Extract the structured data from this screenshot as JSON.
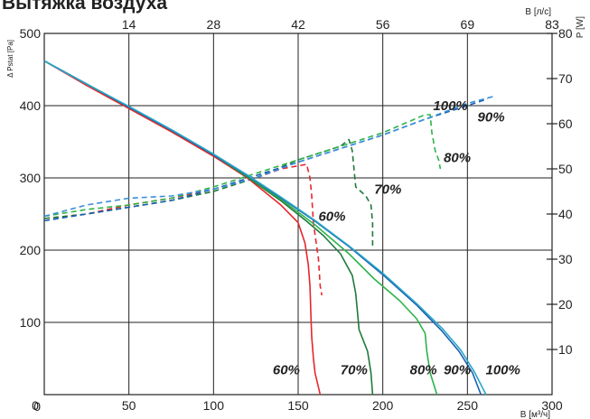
{
  "chart_data": {
    "type": "line",
    "title": "Вытяжка воздуха",
    "xlabel": "В [м³/ч]",
    "x2label": "В [л/с]",
    "ylabel": "Δ Pstat [Pa]",
    "y2label": "P [W]",
    "xlim": [
      0,
      300
    ],
    "ylim": [
      0,
      500
    ],
    "y2lim": [
      0,
      80
    ],
    "x_ticks": [
      0,
      50,
      100,
      150,
      200,
      250,
      300
    ],
    "x_tick_labels": [
      "0",
      "50",
      "100",
      "150",
      "200",
      "250",
      "300"
    ],
    "x2_tick_positions": [
      50,
      100,
      150,
      200,
      250,
      300
    ],
    "x2_tick_labels": [
      "14",
      "28",
      "42",
      "56",
      "69",
      "83"
    ],
    "y_ticks": [
      0,
      100,
      200,
      300,
      400,
      500
    ],
    "y_tick_labels": [
      "0",
      "100",
      "200",
      "300",
      "400",
      "500"
    ],
    "y2_ticks": [
      10,
      20,
      30,
      40,
      50,
      60,
      70,
      80
    ],
    "y2_tick_labels": [
      "10",
      "20",
      "30",
      "40",
      "50",
      "60",
      "70",
      "80"
    ],
    "grid": true,
    "pressure_series": [
      {
        "name": "60%",
        "color": "#e8262b",
        "points": [
          [
            0,
            462
          ],
          [
            25,
            428
          ],
          [
            50,
            396
          ],
          [
            75,
            364
          ],
          [
            100,
            330
          ],
          [
            120,
            300
          ],
          [
            140,
            262
          ],
          [
            150,
            238
          ],
          [
            154,
            210
          ],
          [
            156,
            180
          ],
          [
            157,
            150
          ],
          [
            157.5,
            110
          ],
          [
            158,
            80
          ],
          [
            159,
            50
          ],
          [
            160,
            30
          ],
          [
            163,
            0
          ]
        ]
      },
      {
        "name": "70%",
        "color": "#1f7a3a",
        "points": [
          [
            0,
            462
          ],
          [
            25,
            430
          ],
          [
            50,
            398
          ],
          [
            75,
            366
          ],
          [
            100,
            332
          ],
          [
            120,
            301
          ],
          [
            140,
            268
          ],
          [
            155,
            240
          ],
          [
            165,
            220
          ],
          [
            175,
            195
          ],
          [
            182,
            165
          ],
          [
            184,
            140
          ],
          [
            185,
            115
          ],
          [
            186,
            90
          ],
          [
            191,
            60
          ],
          [
            193,
            30
          ],
          [
            194,
            0
          ]
        ]
      },
      {
        "name": "80%",
        "color": "#2db34a",
        "points": [
          [
            0,
            462
          ],
          [
            25,
            430
          ],
          [
            50,
            398
          ],
          [
            75,
            366
          ],
          [
            100,
            332
          ],
          [
            120,
            302
          ],
          [
            140,
            270
          ],
          [
            160,
            235
          ],
          [
            180,
            195
          ],
          [
            195,
            160
          ],
          [
            210,
            130
          ],
          [
            220,
            105
          ],
          [
            225,
            85
          ],
          [
            226,
            60
          ],
          [
            228,
            30
          ],
          [
            232,
            0
          ]
        ]
      },
      {
        "name": "90%",
        "color": "#1a5fb0",
        "points": [
          [
            0,
            462
          ],
          [
            25,
            430
          ],
          [
            50,
            398
          ],
          [
            75,
            366
          ],
          [
            100,
            332
          ],
          [
            120,
            303
          ],
          [
            140,
            272
          ],
          [
            160,
            240
          ],
          [
            180,
            205
          ],
          [
            200,
            166
          ],
          [
            220,
            124
          ],
          [
            235,
            88
          ],
          [
            245,
            60
          ],
          [
            253,
            30
          ],
          [
            258,
            0
          ]
        ]
      },
      {
        "name": "100%",
        "color": "#2aa6c8",
        "points": [
          [
            0,
            462
          ],
          [
            25,
            430
          ],
          [
            50,
            399
          ],
          [
            75,
            367
          ],
          [
            100,
            333
          ],
          [
            120,
            304
          ],
          [
            140,
            273
          ],
          [
            160,
            241
          ],
          [
            180,
            206
          ],
          [
            200,
            168
          ],
          [
            220,
            126
          ],
          [
            235,
            92
          ],
          [
            246,
            62
          ],
          [
            254,
            32
          ],
          [
            261,
            0
          ]
        ]
      }
    ],
    "power_series": [
      {
        "name": "60%",
        "color": "#e8262b",
        "points": [
          [
            0,
            39
          ],
          [
            25,
            40
          ],
          [
            50,
            42
          ],
          [
            75,
            43.5
          ],
          [
            100,
            45.5
          ],
          [
            125,
            48
          ],
          [
            140,
            50
          ],
          [
            155,
            51
          ],
          [
            157,
            48
          ],
          [
            158,
            44
          ],
          [
            159,
            38
          ],
          [
            162,
            30
          ],
          [
            163,
            24
          ],
          [
            164,
            22
          ]
        ]
      },
      {
        "name": "70%",
        "color": "#1f7a3a",
        "points": [
          [
            0,
            39
          ],
          [
            25,
            40
          ],
          [
            50,
            41.5
          ],
          [
            75,
            43
          ],
          [
            100,
            45
          ],
          [
            125,
            48
          ],
          [
            150,
            52
          ],
          [
            175,
            55
          ],
          [
            180,
            56.5
          ],
          [
            182,
            54
          ],
          [
            183,
            50
          ],
          [
            184,
            46
          ],
          [
            190,
            44
          ],
          [
            193,
            42
          ],
          [
            194,
            38
          ],
          [
            194,
            33
          ]
        ]
      },
      {
        "name": "80%",
        "color": "#2db34a",
        "points": [
          [
            0,
            39.5
          ],
          [
            25,
            41
          ],
          [
            50,
            42
          ],
          [
            75,
            43.5
          ],
          [
            100,
            46
          ],
          [
            125,
            49
          ],
          [
            150,
            52
          ],
          [
            175,
            55
          ],
          [
            200,
            58
          ],
          [
            225,
            62
          ],
          [
            228,
            62
          ],
          [
            229,
            58
          ],
          [
            231,
            54
          ],
          [
            233,
            52
          ],
          [
            234,
            50
          ]
        ]
      },
      {
        "name": "90%",
        "color": "#1a5fb0",
        "points": [
          [
            0,
            38.5
          ],
          [
            25,
            40
          ],
          [
            50,
            41.5
          ],
          [
            75,
            43
          ],
          [
            100,
            45.5
          ],
          [
            125,
            48.5
          ],
          [
            150,
            51.5
          ],
          [
            175,
            54.5
          ],
          [
            200,
            57.5
          ],
          [
            225,
            61
          ],
          [
            250,
            64
          ],
          [
            262,
            65.5
          ]
        ]
      },
      {
        "name": "100%",
        "color": "#3a8fdc",
        "points": [
          [
            0,
            39.5
          ],
          [
            25,
            42
          ],
          [
            50,
            43.5
          ],
          [
            75,
            44
          ],
          [
            100,
            45.5
          ],
          [
            125,
            48
          ],
          [
            150,
            51.5
          ],
          [
            175,
            54.5
          ],
          [
            200,
            57.5
          ],
          [
            225,
            61
          ],
          [
            250,
            64.5
          ],
          [
            265,
            66
          ]
        ]
      }
    ],
    "annotations": [
      {
        "text": "60%",
        "x": 143,
        "y": 28
      },
      {
        "text": "70%",
        "x": 183,
        "y": 28
      },
      {
        "text": "80%",
        "x": 224,
        "y": 28
      },
      {
        "text": "90%",
        "x": 244,
        "y": 28
      },
      {
        "text": "100%",
        "x": 271,
        "y": 28
      },
      {
        "text": "100%",
        "x": 240,
        "y": 63,
        "axis": "y2"
      },
      {
        "text": "90%",
        "x": 264,
        "y": 60.5,
        "axis": "y2"
      },
      {
        "text": "80%",
        "x": 244,
        "y": 51.5,
        "axis": "y2"
      },
      {
        "text": "70%",
        "x": 203,
        "y": 44.5,
        "axis": "y2"
      },
      {
        "text": "60%",
        "x": 170,
        "y": 38.5,
        "axis": "y2"
      }
    ]
  }
}
